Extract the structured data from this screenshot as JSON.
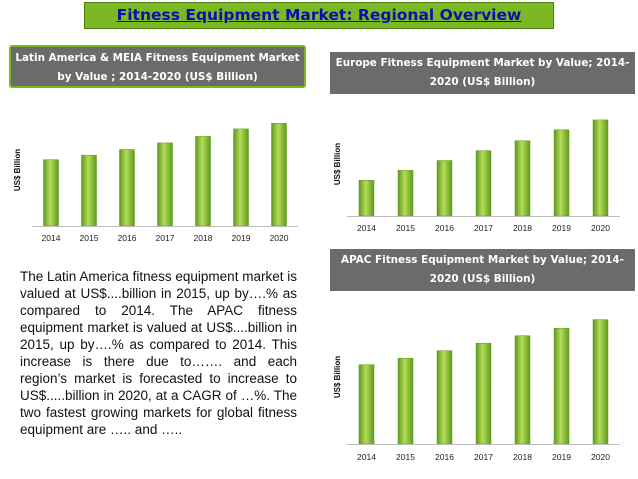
{
  "page_title": "Fitness Equipment Market: Regional Overview",
  "description": "The Latin America fitness equipment market is valued at US$....billion in 2015, up by….% as compared to 2014. The APAC fitness equipment market is valued at US$....billion in 2015, up by….% as compared to 2014. This increase is there due to……. and each region’s market is forecasted to increase to US$.....billion in 2020, at a CAGR of …%. The two fastest growing markets for global fitness equipment are ….. and …..",
  "colors": {
    "bar_light": "#b4dc5a",
    "bar_dark": "#5f9a1c",
    "title_bg": "#7cb824",
    "title_text": "#0a10b0",
    "header_bg": "#6b6b6b"
  },
  "chart_data": [
    {
      "id": "latam",
      "type": "bar",
      "title": "Latin America & MEIA Fitness Equipment Market by Value ; 2014-2020 (US$ Billion)",
      "ylabel": "US$ Billion",
      "xlabel": "",
      "categories": [
        "2014",
        "2015",
        "2016",
        "2017",
        "2018",
        "2019",
        "2020"
      ],
      "values": [
        71,
        76,
        82,
        89,
        96,
        104,
        110
      ],
      "ylim": [
        0,
        120
      ],
      "grid": false,
      "legend": "none"
    },
    {
      "id": "europe",
      "type": "bar",
      "title": "Europe Fitness Equipment Market by Value; 2014-2020 (US$ Billion)",
      "ylabel": "US$ Billion",
      "xlabel": "",
      "categories": [
        "2014",
        "2015",
        "2016",
        "2017",
        "2018",
        "2019",
        "2020"
      ],
      "values": [
        36,
        46,
        56,
        66,
        76,
        87,
        97
      ],
      "ylim": [
        0,
        105
      ],
      "grid": false,
      "legend": "none"
    },
    {
      "id": "apac",
      "type": "bar",
      "title": "APAC Fitness Equipment Market by Value; 2014-2020 (US$ Billion)",
      "ylabel": "US$ Billion",
      "xlabel": "",
      "categories": [
        "2014",
        "2015",
        "2016",
        "2017",
        "2018",
        "2019",
        "2020"
      ],
      "values": [
        74,
        80,
        87,
        94,
        101,
        108,
        116
      ],
      "ylim": [
        0,
        125
      ],
      "grid": false,
      "legend": "none"
    }
  ]
}
